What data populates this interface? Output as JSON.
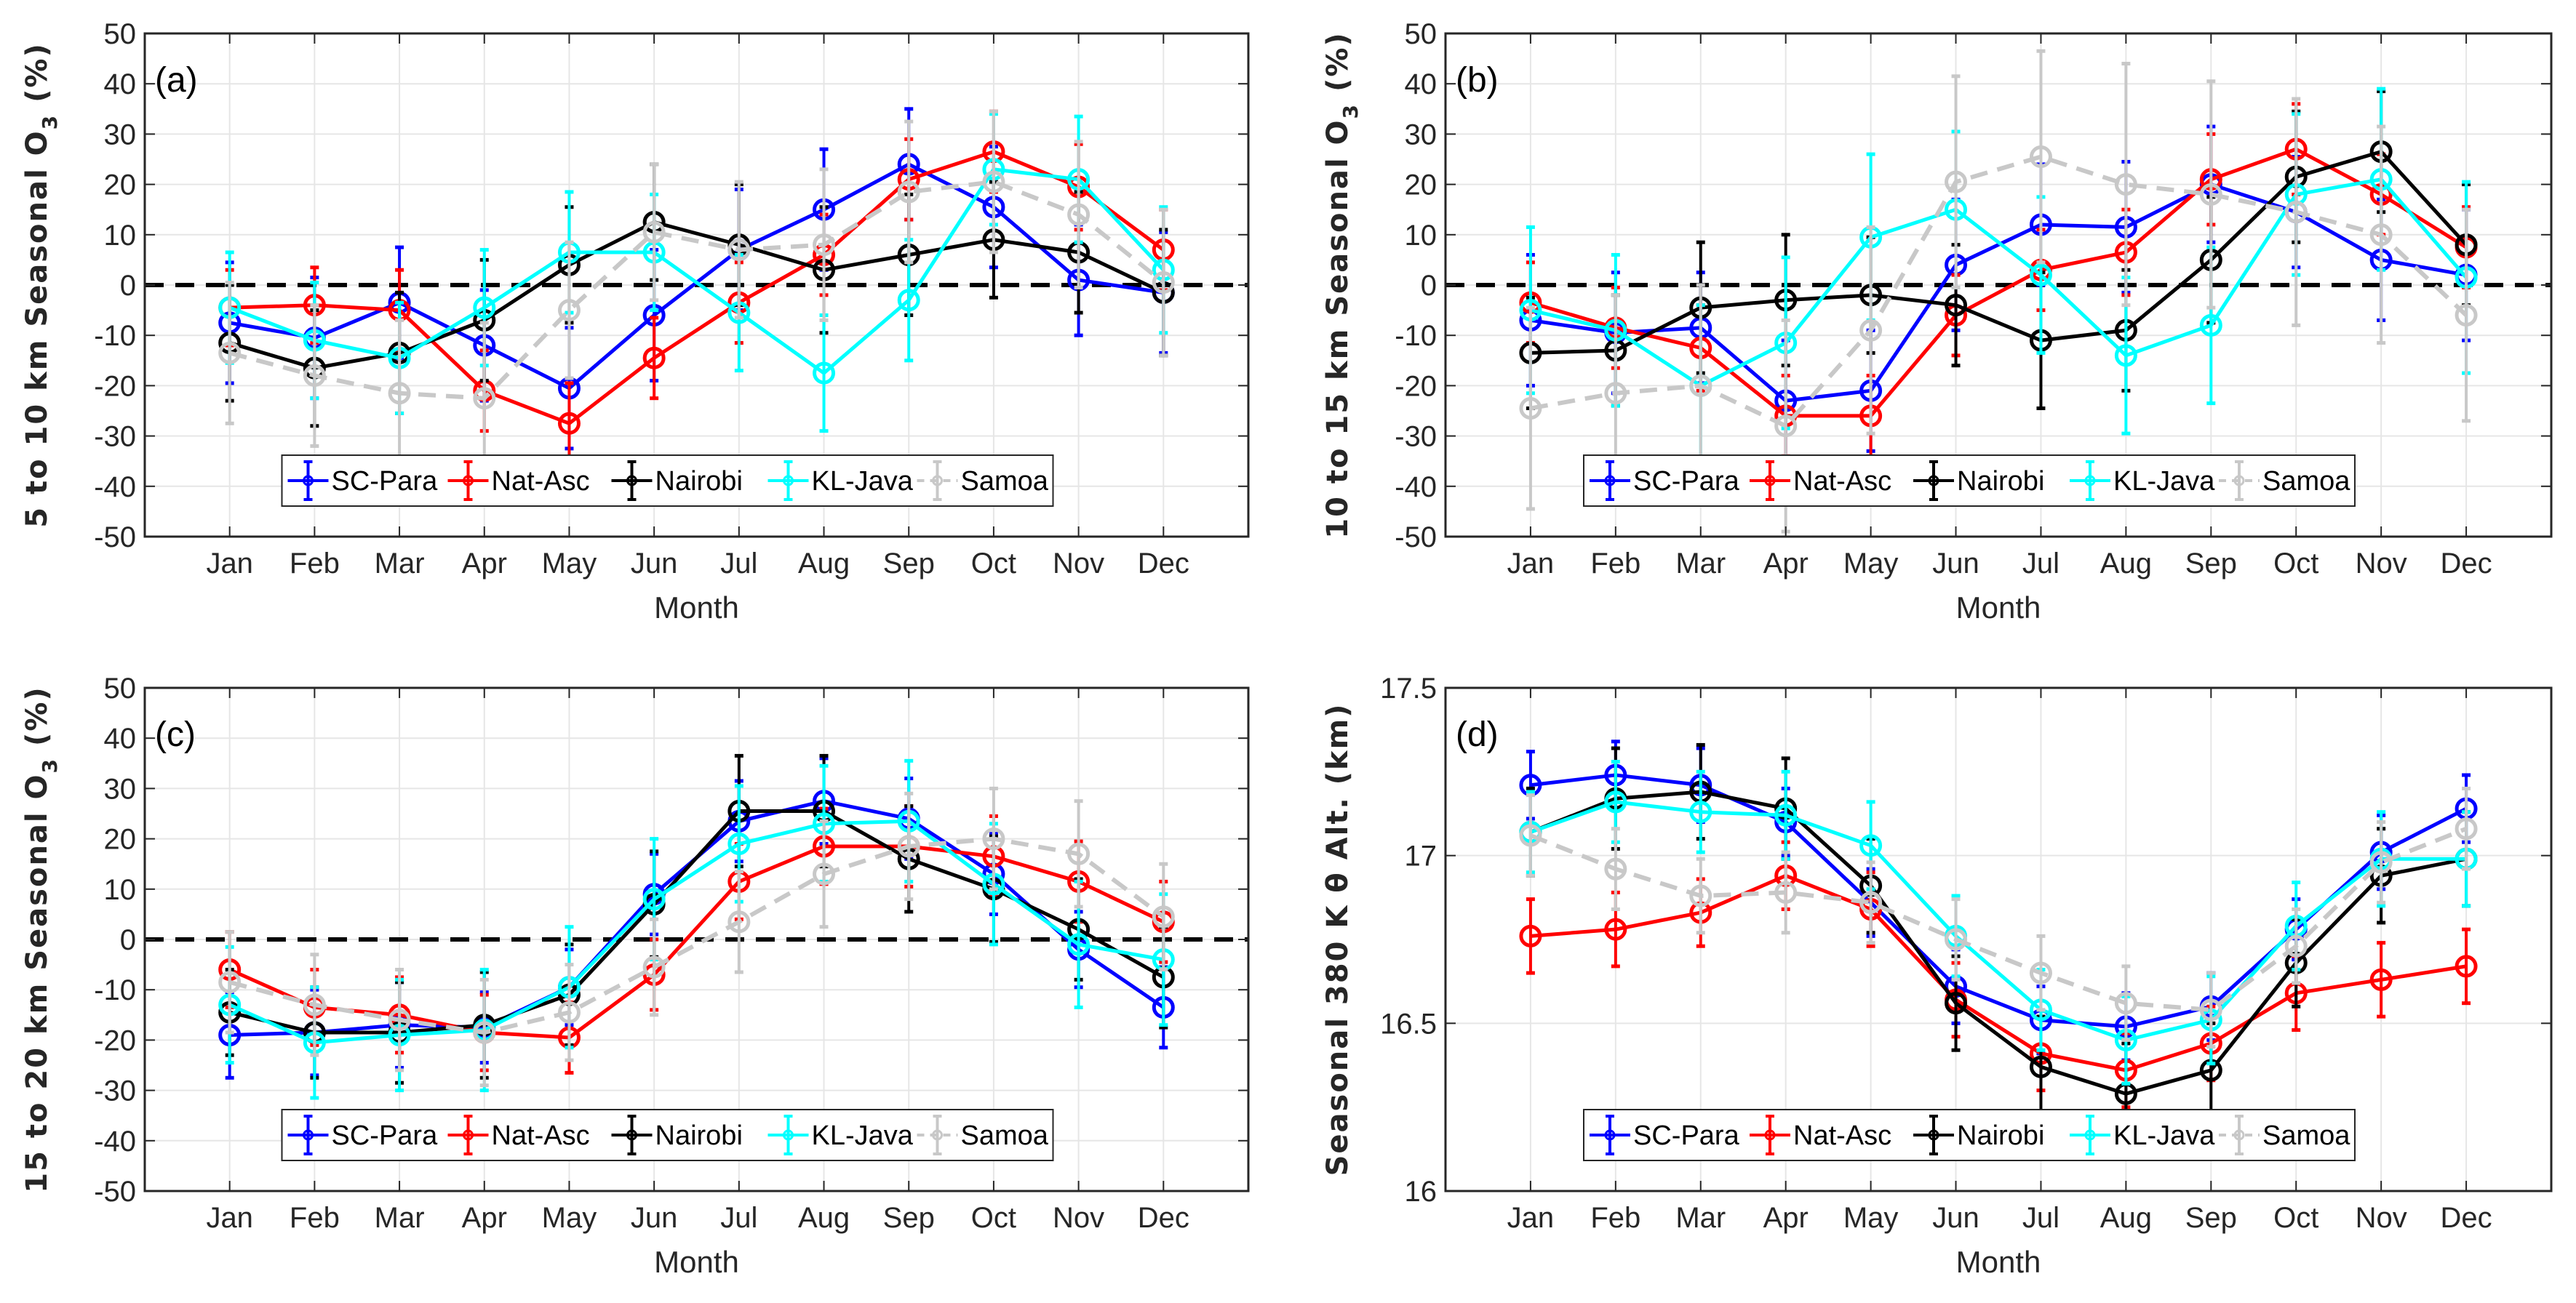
{
  "chart_data": [
    {
      "type": "line",
      "panel_label": "(a)",
      "title": "",
      "xlabel": "Month",
      "ylabel": "5 to 10 km Seasonal O3 (%)",
      "ylabel_main": "5 to 10 km Seasonal O",
      "ylabel_sub": "3",
      "ylabel_tail": "(%)",
      "ylim": [
        -50,
        50
      ],
      "yticks": [
        -50,
        -40,
        -30,
        -20,
        -10,
        0,
        10,
        20,
        30,
        40,
        50
      ],
      "ytick_labels": [
        "-50",
        "-40",
        "-30",
        "-20",
        "-10",
        "0",
        "10",
        "20",
        "30",
        "40",
        "50"
      ],
      "reference_line": 0,
      "grid": true,
      "legend_position": "bottom-center",
      "categories": [
        "Jan",
        "Feb",
        "Mar",
        "Apr",
        "May",
        "Jun",
        "Jul",
        "Aug",
        "Sep",
        "Oct",
        "Nov",
        "Dec"
      ],
      "series": [
        {
          "name": "SC-Para",
          "color": "#0000ff",
          "dashed": false,
          "values": [
            -7.5,
            -10.5,
            -3.5,
            -12,
            -20.5,
            -6,
            7,
            15,
            24,
            15.5,
            1,
            -1.5
          ],
          "err": [
            12,
            12,
            11,
            11,
            12,
            13,
            12,
            12,
            11,
            12,
            11,
            12
          ]
        },
        {
          "name": "Nat-Asc",
          "color": "#ff0000",
          "dashed": false,
          "values": [
            -4.5,
            -4,
            -5,
            -21,
            -27.5,
            -14.5,
            -3.5,
            6,
            21,
            26.5,
            19.5,
            7
          ],
          "err": [
            7.5,
            7.5,
            8,
            8,
            8,
            8,
            8,
            8,
            8,
            8,
            8.5,
            8
          ]
        },
        {
          "name": "Nairobi",
          "color": "#000000",
          "dashed": false,
          "values": [
            -11.5,
            -16.5,
            -13.5,
            -7,
            4,
            12.5,
            8,
            3,
            6,
            9,
            6.5,
            -1.5
          ],
          "err": [
            11.5,
            11.5,
            12,
            12,
            11.5,
            11.5,
            12,
            12.5,
            12,
            11.5,
            12,
            12.5
          ]
        },
        {
          "name": "KL-Java",
          "color": "#00ffff",
          "dashed": false,
          "values": [
            -4.5,
            -11,
            -14.5,
            -4.5,
            6.5,
            6.5,
            -5.5,
            -17.5,
            -3,
            23,
            21,
            3
          ],
          "err": [
            11,
            11.5,
            11,
            11.5,
            12,
            11.5,
            11.5,
            11.5,
            12,
            11,
            12.5,
            12.5
          ]
        },
        {
          "name": "Samoa",
          "color": "#c8c8c8",
          "dashed": true,
          "values": [
            -13.5,
            -18,
            -21.5,
            -22.5,
            -5,
            10.5,
            7,
            8,
            18.5,
            20.5,
            14,
            0.5
          ],
          "err": [
            14,
            14,
            14.5,
            15,
            13.5,
            13.5,
            13.5,
            15,
            14,
            14,
            14.5,
            14.5
          ]
        }
      ]
    },
    {
      "type": "line",
      "panel_label": "(b)",
      "title": "",
      "xlabel": "Month",
      "ylabel": "10 to 15 km Seasonal O3 (%)",
      "ylabel_main": "10 to 15 km Seasonal O",
      "ylabel_sub": "3",
      "ylabel_tail": "(%)",
      "ylim": [
        -50,
        50
      ],
      "yticks": [
        -50,
        -40,
        -30,
        -20,
        -10,
        0,
        10,
        20,
        30,
        40,
        50
      ],
      "ytick_labels": [
        "-50",
        "-40",
        "-30",
        "-20",
        "-10",
        "0",
        "10",
        "20",
        "30",
        "40",
        "50"
      ],
      "reference_line": 0,
      "grid": true,
      "legend_position": "bottom-center",
      "categories": [
        "Jan",
        "Feb",
        "Mar",
        "Apr",
        "May",
        "Jun",
        "Jul",
        "Aug",
        "Sep",
        "Oct",
        "Nov",
        "Dec"
      ],
      "series": [
        {
          "name": "SC-Para",
          "color": "#0000ff",
          "dashed": false,
          "values": [
            -7,
            -9.5,
            -8.5,
            -23,
            -21,
            4,
            12,
            11.5,
            20,
            14.5,
            5,
            2
          ],
          "err": [
            13,
            12,
            11,
            12,
            12,
            13,
            12,
            13,
            11.5,
            11,
            12,
            13
          ]
        },
        {
          "name": "Nat-Asc",
          "color": "#ff0000",
          "dashed": false,
          "values": [
            -3.5,
            -8.5,
            -12.5,
            -26,
            -26,
            -6,
            3,
            6.5,
            21,
            27,
            18,
            7.5
          ],
          "err": [
            8,
            8,
            8.5,
            8,
            8,
            8,
            8,
            8.5,
            9,
            9,
            8,
            8
          ]
        },
        {
          "name": "Nairobi",
          "color": "#000000",
          "dashed": false,
          "values": [
            -13.5,
            -13,
            -4.5,
            -3,
            -2,
            -4,
            -11,
            -9,
            5,
            21.5,
            26.5,
            8
          ],
          "err": [
            11,
            11,
            13,
            13,
            11.5,
            12,
            13.5,
            12,
            12.5,
            13,
            12,
            12
          ]
        },
        {
          "name": "KL-Java",
          "color": "#00ffff",
          "dashed": false,
          "values": [
            -5,
            -9,
            -20,
            -11.5,
            9.5,
            15,
            2,
            -14,
            -8,
            18,
            21,
            1.5
          ],
          "err": [
            16.5,
            15,
            16,
            17,
            16.5,
            15.5,
            15.5,
            15.5,
            15.5,
            16,
            18,
            19
          ]
        },
        {
          "name": "Samoa",
          "color": "#c8c8c8",
          "dashed": true,
          "values": [
            -24.5,
            -21.5,
            -20,
            -28,
            -9,
            20.5,
            25.5,
            20,
            18,
            14.5,
            10,
            -6
          ],
          "err": [
            20,
            19.5,
            20,
            21,
            20.5,
            21,
            21,
            24,
            22.5,
            22.5,
            21.5,
            21
          ]
        }
      ]
    },
    {
      "type": "line",
      "panel_label": "(c)",
      "title": "",
      "xlabel": "Month",
      "ylabel": "15 to 20 km Seasonal O3 (%)",
      "ylabel_main": "15 to 20 km Seasonal O",
      "ylabel_sub": "3",
      "ylabel_tail": "(%)",
      "ylim": [
        -50,
        50
      ],
      "yticks": [
        -50,
        -40,
        -30,
        -20,
        -10,
        0,
        10,
        20,
        30,
        40,
        50
      ],
      "ytick_labels": [
        "-50",
        "-40",
        "-30",
        "-20",
        "-10",
        "0",
        "10",
        "20",
        "30",
        "40",
        "50"
      ],
      "reference_line": 0,
      "grid": true,
      "legend_position": "bottom-center",
      "categories": [
        "Jan",
        "Feb",
        "Mar",
        "Apr",
        "May",
        "Jun",
        "Jul",
        "Aug",
        "Sep",
        "Oct",
        "Nov",
        "Dec"
      ],
      "series": [
        {
          "name": "SC-Para",
          "color": "#0000ff",
          "dashed": false,
          "values": [
            -19,
            -18.5,
            -17,
            -17.5,
            -9.5,
            9,
            23.5,
            27.5,
            24,
            13,
            -2,
            -13.5
          ],
          "err": [
            8.5,
            8.5,
            8.5,
            7,
            7.5,
            8,
            8,
            8.5,
            8,
            8,
            7.5,
            8
          ]
        },
        {
          "name": "Nat-Asc",
          "color": "#ff0000",
          "dashed": false,
          "values": [
            -6,
            -13.5,
            -15,
            -18.5,
            -19.5,
            -7,
            11.5,
            18.5,
            18.5,
            16.5,
            11.5,
            3.5
          ],
          "err": [
            7.5,
            7.5,
            7.5,
            7.5,
            7,
            7,
            7.5,
            7.5,
            8,
            8,
            8,
            8
          ]
        },
        {
          "name": "Nairobi",
          "color": "#000000",
          "dashed": false,
          "values": [
            -14.5,
            -18.5,
            -18.5,
            -17,
            -11,
            7,
            25.5,
            25.5,
            16,
            10,
            2,
            -7.5
          ],
          "err": [
            8.5,
            9,
            10,
            10.5,
            10,
            10.5,
            11,
            11,
            10.5,
            10.5,
            10,
            10
          ]
        },
        {
          "name": "KL-Java",
          "color": "#00ffff",
          "dashed": false,
          "values": [
            -13,
            -20.5,
            -19,
            -18,
            -9.5,
            8,
            19,
            23,
            23.5,
            11,
            -1,
            -4
          ],
          "err": [
            11.5,
            11,
            11,
            12,
            12,
            12,
            11.5,
            11.5,
            12,
            12,
            12.5,
            13
          ]
        },
        {
          "name": "Samoa",
          "color": "#c8c8c8",
          "dashed": true,
          "values": [
            -8.5,
            -13,
            -16,
            -18.5,
            -14.5,
            -5.5,
            3.5,
            13,
            18.5,
            20,
            17,
            4.5
          ],
          "err": [
            10,
            10,
            10,
            10.5,
            9.5,
            9.5,
            10,
            10.5,
            10.5,
            10,
            10.5,
            10.5
          ]
        }
      ]
    },
    {
      "type": "line",
      "panel_label": "(d)",
      "title": "",
      "xlabel": "Month",
      "ylabel": "Seasonal 380 K θ Alt. (km)",
      "ylabel_main": "Seasonal 380 K θ Alt. (km)",
      "ylabel_sub": "",
      "ylabel_tail": "",
      "ylim": [
        16,
        17.5
      ],
      "yticks": [
        16,
        16.5,
        17,
        17.5
      ],
      "ytick_labels": [
        "16",
        "16.5",
        "17",
        "17.5"
      ],
      "reference_line": null,
      "grid": true,
      "legend_position": "bottom-center",
      "categories": [
        "Jan",
        "Feb",
        "Mar",
        "Apr",
        "May",
        "Jun",
        "Jul",
        "Aug",
        "Sep",
        "Oct",
        "Nov",
        "Dec"
      ],
      "series": [
        {
          "name": "SC-Para",
          "color": "#0000ff",
          "dashed": false,
          "values": [
            17.21,
            17.24,
            17.21,
            17.1,
            16.86,
            16.61,
            16.51,
            16.49,
            16.55,
            16.78,
            17.01,
            17.14
          ],
          "err": [
            0.1,
            0.1,
            0.11,
            0.1,
            0.1,
            0.11,
            0.1,
            0.1,
            0.1,
            0.09,
            0.11,
            0.1
          ]
        },
        {
          "name": "Nat-Asc",
          "color": "#ff0000",
          "dashed": false,
          "values": [
            16.76,
            16.78,
            16.83,
            16.94,
            16.84,
            16.57,
            16.41,
            16.36,
            16.44,
            16.59,
            16.63,
            16.67
          ],
          "err": [
            0.11,
            0.11,
            0.1,
            0.1,
            0.11,
            0.11,
            0.11,
            0.11,
            0.11,
            0.11,
            0.11,
            0.11
          ]
        },
        {
          "name": "Nairobi",
          "color": "#000000",
          "dashed": false,
          "values": [
            17.07,
            17.17,
            17.19,
            17.14,
            16.91,
            16.56,
            16.37,
            16.29,
            16.36,
            16.68,
            16.94,
            16.99
          ],
          "err": [
            0.13,
            0.15,
            0.14,
            0.15,
            0.14,
            0.14,
            0.15,
            0.15,
            0.14,
            0.13,
            0.14,
            0.14
          ]
        },
        {
          "name": "KL-Java",
          "color": "#00ffff",
          "dashed": false,
          "values": [
            17.07,
            17.16,
            17.13,
            17.12,
            17.03,
            16.76,
            16.54,
            16.45,
            16.51,
            16.79,
            16.99,
            16.99
          ],
          "err": [
            0.12,
            0.12,
            0.12,
            0.13,
            0.13,
            0.12,
            0.12,
            0.13,
            0.13,
            0.13,
            0.14,
            0.14
          ]
        },
        {
          "name": "Samoa",
          "color": "#c8c8c8",
          "dashed": true,
          "values": [
            17.06,
            16.96,
            16.88,
            16.89,
            16.86,
            16.75,
            16.65,
            16.56,
            16.54,
            16.73,
            16.98,
            17.08
          ],
          "err": [
            0.12,
            0.12,
            0.11,
            0.12,
            0.12,
            0.12,
            0.11,
            0.11,
            0.11,
            0.11,
            0.12,
            0.12
          ]
        }
      ]
    }
  ]
}
